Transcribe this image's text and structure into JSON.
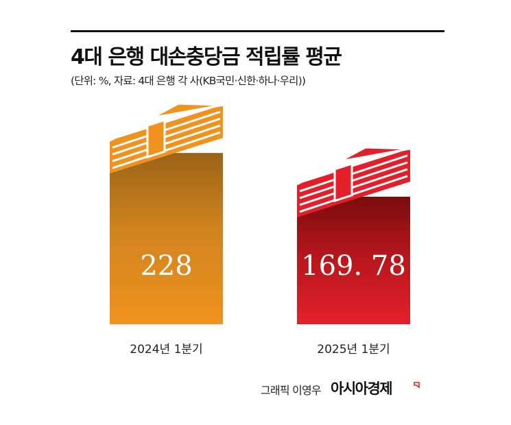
{
  "header": {
    "title": "4대 은행 대손충당금 적립률 평균",
    "subtitle": "(단위: %, 자료: 4대 은행 각 사(KB국민·신한·하나·우리))"
  },
  "chart_data": {
    "type": "bar",
    "title": "4대 은행 대손충당금 적립률 평균",
    "categories": [
      "2024년 1분기",
      "2025년 1분기"
    ],
    "values": [
      228,
      169.78
    ],
    "value_labels": [
      "228",
      "169. 78"
    ],
    "ylabel": "",
    "xlabel": "",
    "ylim": [
      0,
      240
    ]
  },
  "colors": {
    "bar_2024": "#f0921e",
    "bar_2024_dark": "#a86f1e",
    "bar_2025": "#e3202a",
    "bar_2025_dark": "#8a1212",
    "money_stripe": "#ffffff"
  },
  "footer": {
    "credit": "그래픽 이영우",
    "logo": "아시아경제"
  }
}
